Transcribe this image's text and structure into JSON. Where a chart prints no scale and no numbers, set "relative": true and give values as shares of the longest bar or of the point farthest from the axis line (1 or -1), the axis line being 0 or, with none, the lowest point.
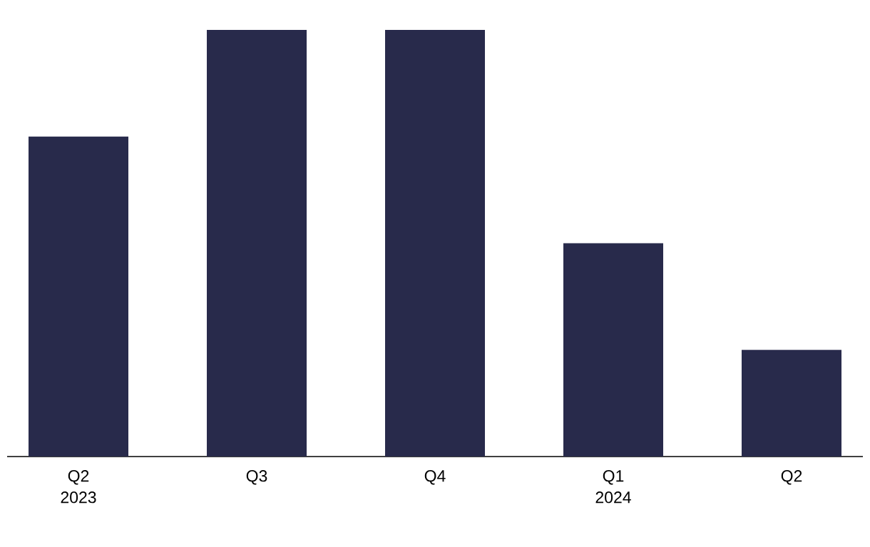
{
  "chart_data": {
    "type": "bar",
    "relative": true,
    "categories": [
      "Q2 2023",
      "Q3",
      "Q4",
      "Q1 2024",
      "Q2"
    ],
    "values": [
      0.75,
      1,
      1,
      0.5,
      0.25
    ],
    "color": "#282a4b"
  }
}
